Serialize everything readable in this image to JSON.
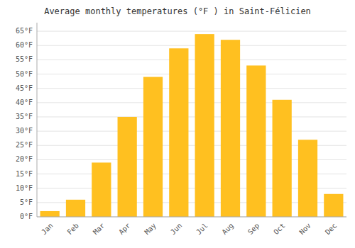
{
  "chart_data": {
    "type": "bar",
    "title": "Average monthly temperatures (°F ) in Saint-Félicien",
    "categories": [
      "Jan",
      "Feb",
      "Mar",
      "Apr",
      "May",
      "Jun",
      "Jul",
      "Aug",
      "Sep",
      "Oct",
      "Nov",
      "Dec"
    ],
    "values": [
      2,
      6,
      19,
      35,
      49,
      59,
      64,
      62,
      53,
      41,
      27,
      8
    ],
    "color": "#FFC020",
    "ylim": [
      0,
      68
    ],
    "yticks": [
      {
        "value": 0,
        "label": "0°F"
      },
      {
        "value": 5,
        "label": "5°F"
      },
      {
        "value": 10,
        "label": "10°F"
      },
      {
        "value": 15,
        "label": "15°F"
      },
      {
        "value": 20,
        "label": "20°F"
      },
      {
        "value": 25,
        "label": "25°F"
      },
      {
        "value": 30,
        "label": "30°F"
      },
      {
        "value": 35,
        "label": "35°F"
      },
      {
        "value": 40,
        "label": "40°F"
      },
      {
        "value": 45,
        "label": "45°F"
      },
      {
        "value": 50,
        "label": "50°F"
      },
      {
        "value": 55,
        "label": "55°F"
      },
      {
        "value": 60,
        "label": "60°F"
      },
      {
        "value": 65,
        "label": "65°F"
      }
    ],
    "grid": true
  }
}
